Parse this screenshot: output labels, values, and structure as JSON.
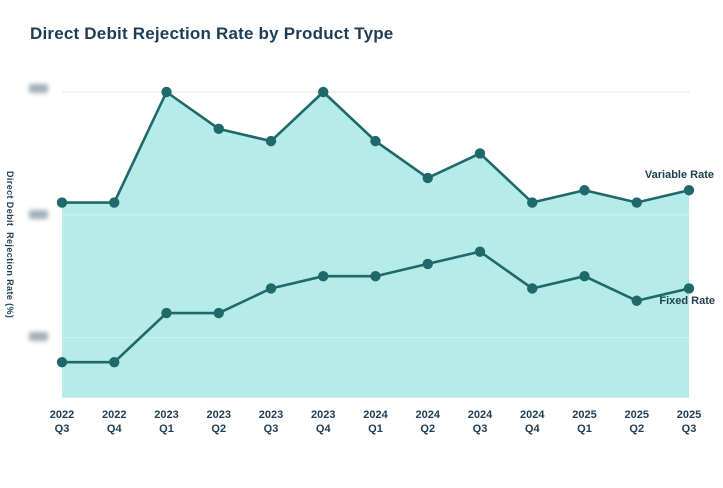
{
  "chart": {
    "title": "Direct Debit Rejection Rate by Product Type",
    "ylabel": "Direct Debit  Rejection Rate (%)"
  },
  "colors": {
    "title_text": "#1e3d55",
    "axis_text": "#1e3c55",
    "line": "#20696a",
    "marker": "#20696a",
    "area_fill": "#b5ebe8",
    "gridline": "#e9eef2",
    "gridline_over_fill": "rgba(255,255,255,0.30)",
    "redacted_tick": "#8fa0ac",
    "background": "#ffffff"
  },
  "chart_data": {
    "type": "area",
    "title": "Direct Debit Rejection Rate by Product Type",
    "xlabel": "",
    "ylabel": "Direct Debit Rejection Rate (%)",
    "categories": [
      "2022 Q3",
      "2022 Q4",
      "2023 Q1",
      "2023 Q2",
      "2023 Q3",
      "2023 Q4",
      "2024 Q1",
      "2024 Q2",
      "2024 Q3",
      "2024 Q4",
      "2025 Q1",
      "2025 Q2",
      "2025 Q3"
    ],
    "series": [
      {
        "name": "Variable Rate",
        "area_fill": true,
        "values": [
          2.1,
          2.1,
          3.0,
          2.7,
          2.6,
          3.0,
          2.6,
          2.3,
          2.5,
          2.1,
          2.2,
          2.1,
          2.2
        ]
      },
      {
        "name": "Fixed Rate",
        "area_fill": false,
        "values": [
          0.8,
          0.8,
          1.2,
          1.2,
          1.4,
          1.5,
          1.5,
          1.6,
          1.7,
          1.4,
          1.5,
          1.3,
          1.4
        ]
      }
    ],
    "y_gridlines": [
      1,
      2,
      3
    ],
    "y_tick_labels": "redacted (blurred boxes in source image)",
    "ylim": [
      0.51,
      3.0
    ],
    "grid": true,
    "legend_position": "labels at line ends, right side"
  }
}
